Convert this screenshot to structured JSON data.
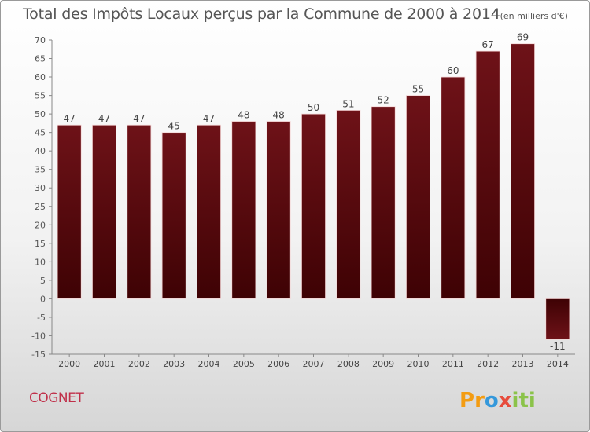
{
  "chart_data": {
    "type": "bar",
    "title": "Total des Impôts Locaux perçus par la Commune de 2000 à 2014",
    "unit": "(en milliers d'€)",
    "categories": [
      "2000",
      "2001",
      "2002",
      "2003",
      "2004",
      "2005",
      "2006",
      "2007",
      "2008",
      "2009",
      "2010",
      "2011",
      "2012",
      "2013",
      "2014"
    ],
    "values": [
      47,
      47,
      47,
      45,
      47,
      48,
      48,
      50,
      51,
      52,
      55,
      60,
      67,
      69,
      -11
    ],
    "value_labels": [
      "47",
      "47",
      "47",
      "45",
      "47",
      "48",
      "48",
      "50",
      "51",
      "52",
      "55",
      "60",
      "67",
      "69",
      "-11"
    ],
    "ylim": [
      -15,
      70
    ],
    "yticks": [
      70,
      65,
      60,
      55,
      50,
      45,
      40,
      35,
      30,
      25,
      20,
      15,
      10,
      5,
      0,
      -5,
      -10,
      -15
    ],
    "grid": false,
    "bar_color": "#6e1218",
    "bar_color_dark": "#3e0204"
  },
  "commune": "COGNET",
  "logo": {
    "text": "Proxiti",
    "colors": [
      "#f39c12",
      "#8bc34a",
      "#3498db",
      "#e74c3c"
    ]
  }
}
